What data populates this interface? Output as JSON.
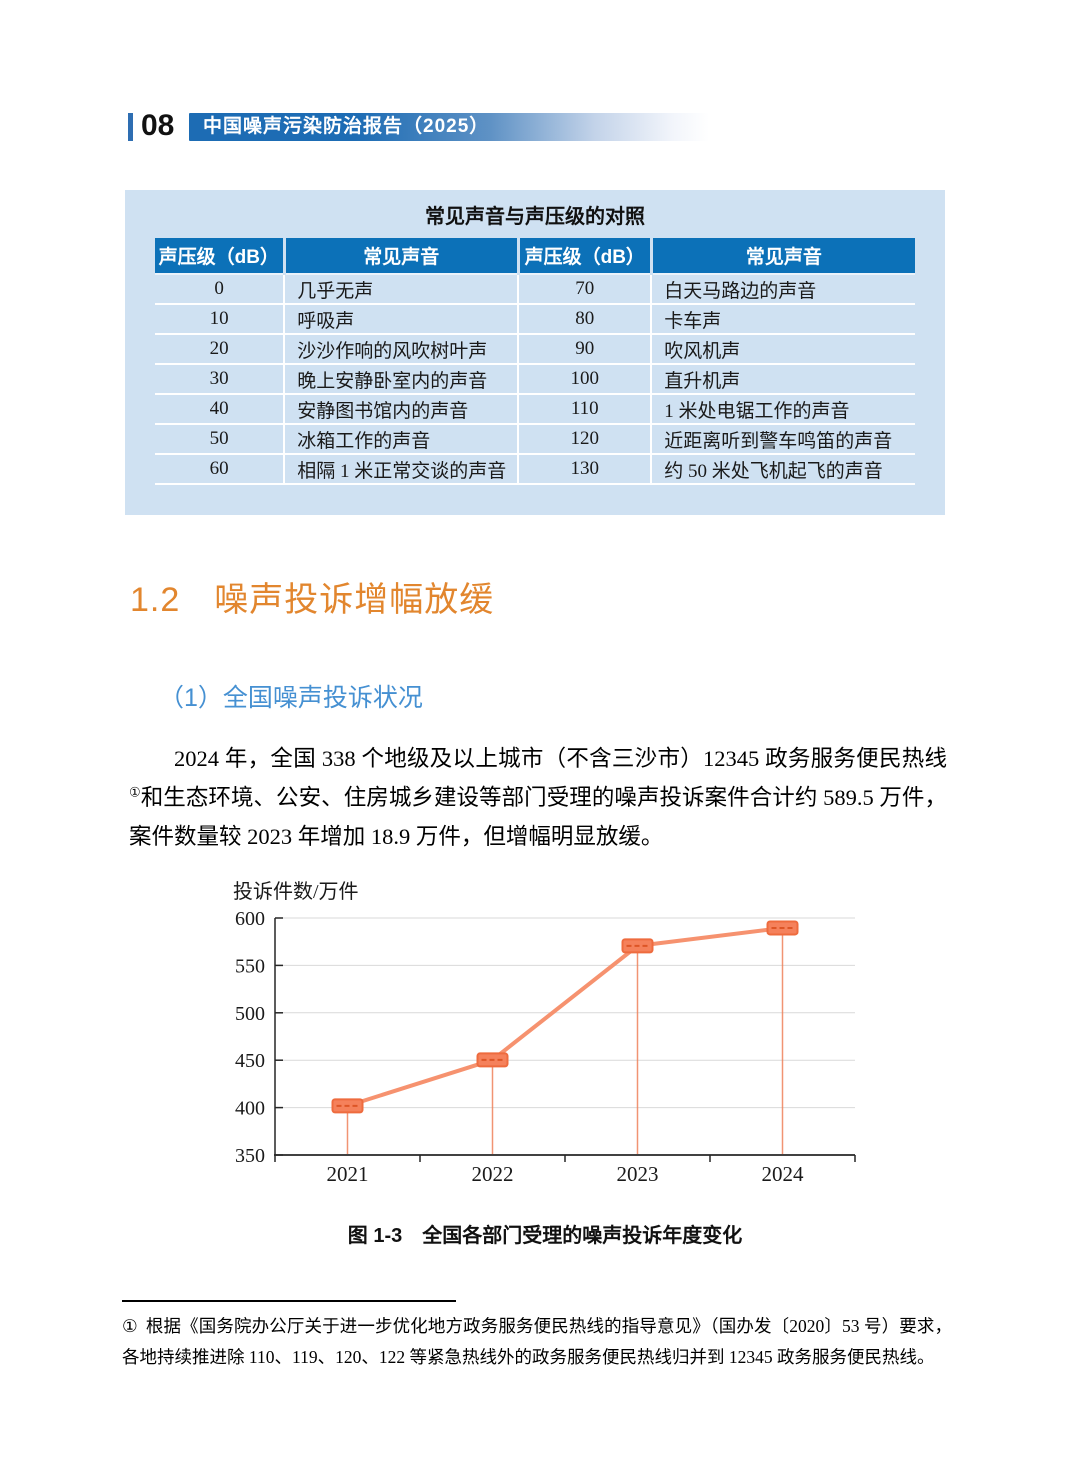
{
  "header": {
    "page_number": "08",
    "report_title": "中国噪声污染防治报告（2025）"
  },
  "sound_table": {
    "title": "常见声音与声压级的对照",
    "headers": [
      "声压级（dB）",
      "常见声音",
      "声压级（dB）",
      "常见声音"
    ],
    "rows": [
      [
        "0",
        "几乎无声",
        "70",
        "白天马路边的声音"
      ],
      [
        "10",
        "呼吸声",
        "80",
        "卡车声"
      ],
      [
        "20",
        "沙沙作响的风吹树叶声",
        "90",
        "吹风机声"
      ],
      [
        "30",
        "晚上安静卧室内的声音",
        "100",
        "直升机声"
      ],
      [
        "40",
        "安静图书馆内的声音",
        "110",
        "1 米处电锯工作的声音"
      ],
      [
        "50",
        "冰箱工作的声音",
        "120",
        "近距离听到警车鸣笛的声音"
      ],
      [
        "60",
        "相隔 1 米正常交谈的声音",
        "130",
        "约 50 米处飞机起飞的声音"
      ]
    ]
  },
  "section": {
    "number": "1.2",
    "title": "噪声投诉增幅放缓"
  },
  "subsection": {
    "title": "（1）全国噪声投诉状况"
  },
  "paragraph": {
    "text_before_ref": "2024 年，全国 338 个地级及以上城市（不含三沙市）12345 政务服务便民热线",
    "footnote_ref": "①",
    "text_after_ref": "和生态环境、公安、住房城乡建设等部门受理的噪声投诉案件合计约 589.5 万件，案件数量较 2023 年增加 18.9 万件，但增幅明显放缓。"
  },
  "chart_data": {
    "type": "line",
    "categories": [
      "2021",
      "2022",
      "2023",
      "2024"
    ],
    "values": [
      401.8,
      450.3,
      570.6,
      589.5
    ],
    "title": "",
    "xlabel": "",
    "ylabel": "投诉件数/万件",
    "ylim": [
      350,
      600
    ],
    "ytick_step": 50,
    "grid": true,
    "legend": "none",
    "line_color": "#f6926f",
    "marker_fill": "#f5815b",
    "marker_stroke": "#ee6b3e",
    "marker_dash_color": "#dd5526",
    "drop_line_color": "#ef825b",
    "grid_color": "#d9d9d9",
    "axis_color": "#262626"
  },
  "figure": {
    "caption": "图 1-3　全国各部门受理的噪声投诉年度变化"
  },
  "footnote": {
    "marker": "①",
    "text": "根据《国务院办公厅关于进一步优化地方政务服务便民热线的指导意见》（国办发〔2020〕53 号）要求，各地持续推进除 110、119、120、122 等紧急热线外的政务服务便民热线归并到 12345 政务服务便民热线。"
  }
}
